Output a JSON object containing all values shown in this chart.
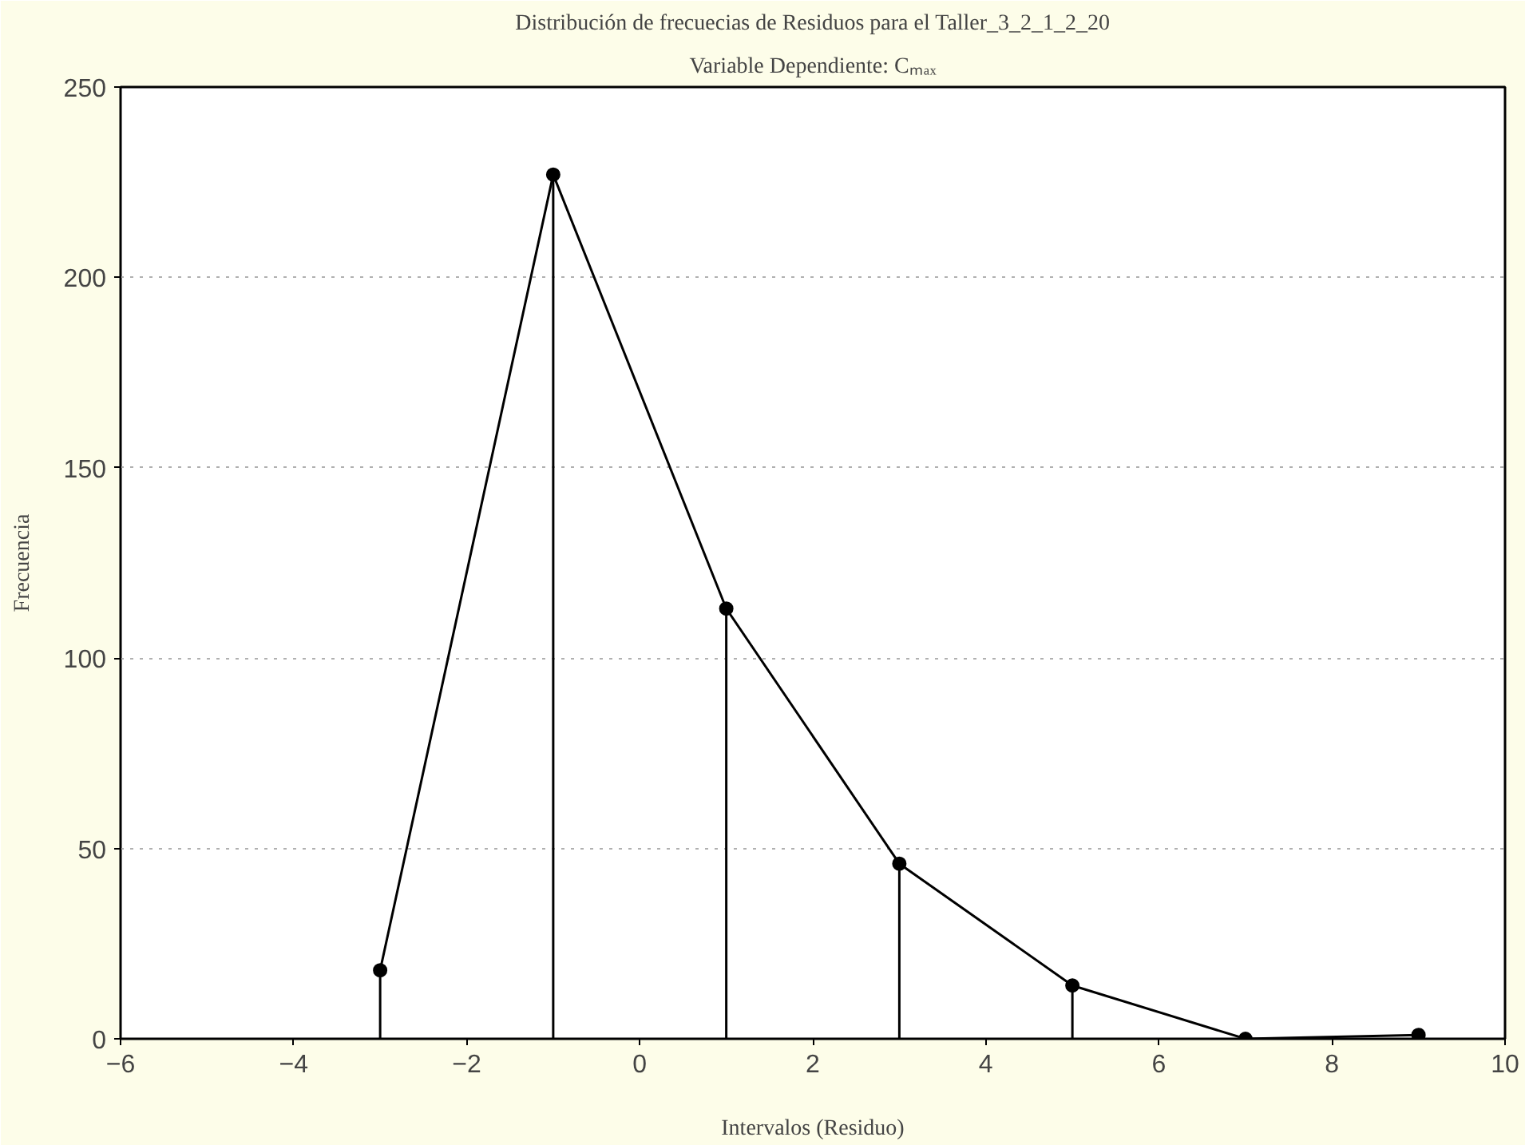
{
  "chart_data": {
    "type": "lollipop",
    "title": "Distribución de frecuecias de Residuos para el Taller_3_2_1_2_20",
    "subtitle": "Variable Dependiente: Cₘₐₓ",
    "xlabel": "Intervalos (Residuo)",
    "ylabel": "Frecuencia",
    "x": [
      -3,
      -1,
      1,
      3,
      5,
      7,
      9
    ],
    "series": [
      {
        "color": "#000000",
        "marker": "circle",
        "values": [
          18,
          227,
          113,
          46,
          14,
          0,
          1
        ]
      },
      {
        "type": "line",
        "color": "#000000",
        "line_style": "solid",
        "values": [
          18,
          227,
          113,
          46,
          14,
          0,
          1
        ]
      }
    ],
    "xlim": [
      -6,
      10
    ],
    "xticks": [
      -6,
      -4,
      -2,
      0,
      2,
      4,
      6,
      8,
      10
    ],
    "ylim": [
      0,
      250
    ],
    "yticks": [
      0,
      50,
      100,
      150,
      200,
      250
    ],
    "grid": "y"
  }
}
